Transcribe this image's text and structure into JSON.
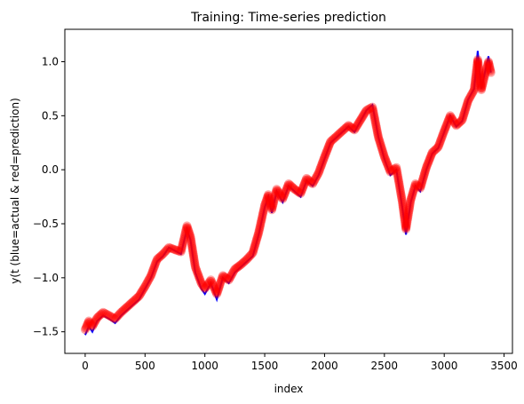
{
  "chart_data": {
    "type": "line",
    "title": "Training: Time-series prediction",
    "xlabel": "index",
    "ylabel": "y(t (blue=actual & red=prediction)",
    "xlim": [
      -170,
      3570
    ],
    "ylim": [
      -1.7,
      1.3
    ],
    "xticks": [
      0,
      500,
      1000,
      1500,
      2000,
      2500,
      3000,
      3500
    ],
    "yticks": [
      -1.5,
      -1.0,
      -0.5,
      0.0,
      0.5,
      1.0
    ],
    "ytick_labels": [
      "−1.5",
      "−1.0",
      "−0.5",
      "0.0",
      "0.5",
      "1.0"
    ],
    "grid": false,
    "legend": "none",
    "series": [
      {
        "role": "actual",
        "color": "#0000ff",
        "style": "line",
        "x": [
          0,
          30,
          60,
          100,
          150,
          200,
          250,
          300,
          350,
          400,
          450,
          500,
          550,
          600,
          650,
          700,
          750,
          800,
          850,
          880,
          920,
          970,
          1000,
          1050,
          1100,
          1150,
          1200,
          1250,
          1300,
          1350,
          1400,
          1450,
          1500,
          1530,
          1560,
          1600,
          1650,
          1700,
          1750,
          1800,
          1850,
          1900,
          1950,
          2000,
          2050,
          2100,
          2150,
          2200,
          2250,
          2300,
          2350,
          2400,
          2450,
          2500,
          2550,
          2600,
          2650,
          2680,
          2720,
          2760,
          2800,
          2850,
          2900,
          2950,
          3000,
          3050,
          3100,
          3150,
          3200,
          3250,
          3280,
          3310,
          3340,
          3370,
          3390
        ],
        "y": [
          -1.53,
          -1.45,
          -1.5,
          -1.4,
          -1.35,
          -1.38,
          -1.42,
          -1.35,
          -1.3,
          -1.25,
          -1.2,
          -1.1,
          -1.0,
          -0.85,
          -0.8,
          -0.72,
          -0.75,
          -0.78,
          -0.55,
          -0.65,
          -0.95,
          -1.1,
          -1.15,
          -1.05,
          -1.2,
          -1.0,
          -1.05,
          -0.95,
          -0.9,
          -0.85,
          -0.8,
          -0.6,
          -0.35,
          -0.25,
          -0.4,
          -0.2,
          -0.3,
          -0.15,
          -0.2,
          -0.25,
          -0.1,
          -0.15,
          -0.05,
          0.1,
          0.25,
          0.3,
          0.35,
          0.4,
          0.35,
          0.45,
          0.55,
          0.6,
          0.3,
          0.1,
          -0.05,
          0.0,
          -0.35,
          -0.6,
          -0.3,
          -0.15,
          -0.2,
          0.0,
          0.15,
          0.2,
          0.35,
          0.5,
          0.4,
          0.45,
          0.65,
          0.75,
          1.1,
          0.75,
          0.9,
          1.05,
          0.9
        ]
      },
      {
        "role": "prediction",
        "color": "#ff0000",
        "style": "markers",
        "x": [
          0,
          30,
          60,
          100,
          150,
          200,
          250,
          300,
          350,
          400,
          450,
          500,
          550,
          600,
          650,
          700,
          750,
          800,
          850,
          880,
          920,
          970,
          1000,
          1050,
          1100,
          1150,
          1200,
          1250,
          1300,
          1350,
          1400,
          1450,
          1500,
          1530,
          1560,
          1600,
          1650,
          1700,
          1750,
          1800,
          1850,
          1900,
          1950,
          2000,
          2050,
          2100,
          2150,
          2200,
          2250,
          2300,
          2350,
          2400,
          2450,
          2500,
          2550,
          2600,
          2650,
          2680,
          2720,
          2760,
          2800,
          2850,
          2900,
          2950,
          3000,
          3050,
          3100,
          3150,
          3200,
          3250,
          3280,
          3310,
          3340,
          3370,
          3390
        ],
        "y": [
          -1.48,
          -1.4,
          -1.45,
          -1.37,
          -1.32,
          -1.35,
          -1.38,
          -1.32,
          -1.27,
          -1.22,
          -1.17,
          -1.08,
          -0.98,
          -0.83,
          -0.78,
          -0.72,
          -0.74,
          -0.76,
          -0.52,
          -0.62,
          -0.9,
          -1.05,
          -1.1,
          -1.02,
          -1.15,
          -0.98,
          -1.02,
          -0.92,
          -0.88,
          -0.83,
          -0.77,
          -0.58,
          -0.33,
          -0.23,
          -0.37,
          -0.18,
          -0.27,
          -0.13,
          -0.18,
          -0.22,
          -0.08,
          -0.13,
          -0.03,
          0.12,
          0.26,
          0.31,
          0.36,
          0.41,
          0.37,
          0.46,
          0.55,
          0.58,
          0.3,
          0.12,
          -0.02,
          0.02,
          -0.3,
          -0.55,
          -0.28,
          -0.13,
          -0.17,
          0.02,
          0.16,
          0.21,
          0.36,
          0.5,
          0.41,
          0.46,
          0.64,
          0.74,
          1.02,
          0.74,
          0.88,
          1.0,
          0.9
        ]
      }
    ]
  }
}
